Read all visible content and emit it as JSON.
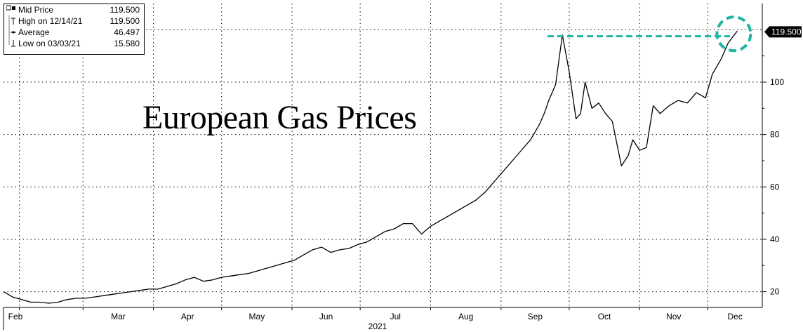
{
  "chart_data": {
    "type": "line",
    "title": "European Gas Prices",
    "xlabel": "2021",
    "ylim": [
      14,
      130
    ],
    "y_ticks": [
      20,
      40,
      60,
      80,
      100
    ],
    "grid": true,
    "y_axis_side": "right",
    "x_ticks": [
      "Feb",
      "Mar",
      "Apr",
      "May",
      "Jun",
      "Jul",
      "Aug",
      "Sep",
      "Oct",
      "Nov",
      "Dec"
    ],
    "legend": [
      {
        "label": "Mid Price",
        "value": "119.500"
      },
      {
        "label": "High on 12/14/21",
        "value": "119.500"
      },
      {
        "label": "Average",
        "value": "46.497"
      },
      {
        "label": "Low on 03/03/21",
        "value": "15.580"
      }
    ],
    "last_price_label": "119.500",
    "line_color": "#000000",
    "highlight_color": "#1fb5a0",
    "series": [
      {
        "x": [
          "2021-01-25",
          "2021-01-29",
          "2021-02-02",
          "2021-02-06",
          "2021-02-10",
          "2021-02-14",
          "2021-02-18",
          "2021-02-22",
          "2021-02-26",
          "2021-03-02",
          "2021-03-06",
          "2021-03-10",
          "2021-03-14",
          "2021-03-18",
          "2021-03-22",
          "2021-03-26",
          "2021-03-30",
          "2021-04-03",
          "2021-04-07",
          "2021-04-11",
          "2021-04-15",
          "2021-04-19",
          "2021-04-23",
          "2021-04-27",
          "2021-05-01",
          "2021-05-05",
          "2021-05-09",
          "2021-05-13",
          "2021-05-17",
          "2021-05-21",
          "2021-05-25",
          "2021-05-29",
          "2021-06-02",
          "2021-06-06",
          "2021-06-10",
          "2021-06-14",
          "2021-06-18",
          "2021-06-22",
          "2021-06-26",
          "2021-06-30",
          "2021-07-04",
          "2021-07-08",
          "2021-07-12",
          "2021-07-16",
          "2021-07-20",
          "2021-07-24",
          "2021-07-28",
          "2021-08-01",
          "2021-08-05",
          "2021-08-09",
          "2021-08-13",
          "2021-08-17",
          "2021-08-21",
          "2021-08-25",
          "2021-08-29",
          "2021-09-02",
          "2021-09-06",
          "2021-09-10",
          "2021-09-14",
          "2021-09-18",
          "2021-09-20",
          "2021-09-22",
          "2021-09-25",
          "2021-09-28",
          "2021-10-01",
          "2021-10-04",
          "2021-10-06",
          "2021-10-08",
          "2021-10-11",
          "2021-10-14",
          "2021-10-17",
          "2021-10-20",
          "2021-10-24",
          "2021-10-27",
          "2021-10-29",
          "2021-11-01",
          "2021-11-04",
          "2021-11-07",
          "2021-11-10",
          "2021-11-14",
          "2021-11-18",
          "2021-11-22",
          "2021-11-26",
          "2021-11-30",
          "2021-12-03",
          "2021-12-07",
          "2021-12-10",
          "2021-12-14"
        ],
        "values": [
          20,
          18,
          17,
          16,
          16,
          15.6,
          16,
          17,
          17.5,
          17.5,
          18,
          18.5,
          19,
          19.5,
          20,
          20.5,
          21,
          21,
          22,
          23,
          24.5,
          25.5,
          24,
          24.5,
          25.5,
          26,
          26.5,
          27,
          28,
          29,
          30,
          31,
          32,
          34,
          36,
          37,
          35,
          36,
          36.5,
          38,
          39,
          41,
          43,
          44,
          46,
          46,
          42,
          45,
          47,
          49,
          51,
          53,
          55,
          58,
          62,
          66,
          70,
          74,
          78,
          84,
          88,
          93,
          99,
          118,
          104,
          86,
          88,
          100,
          90,
          92,
          88,
          85,
          68,
          72,
          78,
          74,
          75,
          91,
          88,
          91,
          93,
          92,
          96,
          94,
          103,
          109,
          115,
          119.5
        ]
      }
    ]
  }
}
